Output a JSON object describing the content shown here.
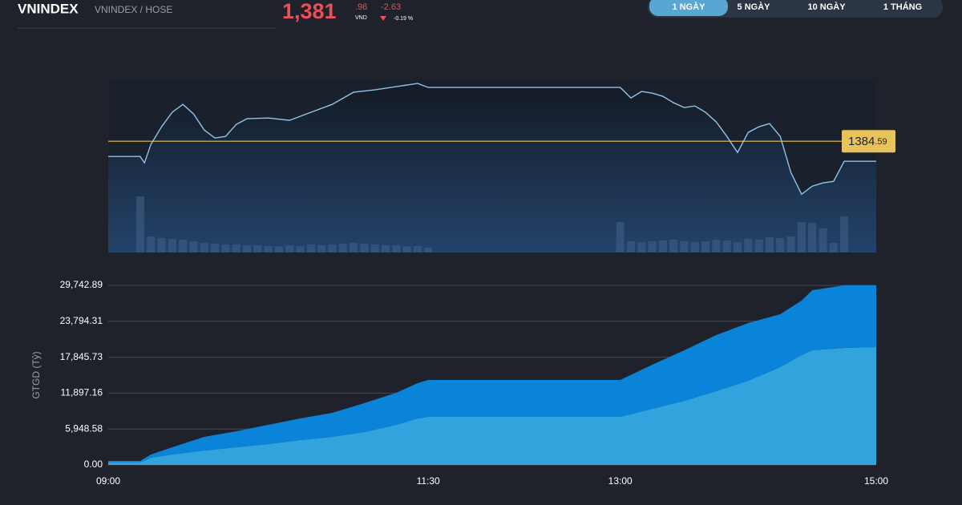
{
  "header": {
    "symbol": "VNINDEX",
    "exchange": "VNINDEX / HOSE",
    "price_int": "1,381",
    "price_dec": ".96",
    "currency": "VND",
    "change": "-2.63",
    "change_pct": "-0.19 %"
  },
  "tabs": [
    "1 NGÀY",
    "5 NGÀY",
    "10 NGÀY",
    "1 THÁNG"
  ],
  "chart_data": [
    {
      "type": "line",
      "x": [
        "09:00",
        "09:15",
        "09:17",
        "09:20",
        "09:25",
        "09:30",
        "09:35",
        "09:40",
        "09:45",
        "09:50",
        "09:55",
        "10:00",
        "10:05",
        "10:15",
        "10:25",
        "10:35",
        "10:45",
        "10:55",
        "11:05",
        "11:15",
        "11:25",
        "11:30",
        "13:00",
        "13:05",
        "13:10",
        "13:15",
        "13:20",
        "13:25",
        "13:30",
        "13:35",
        "13:40",
        "13:45",
        "13:50",
        "13:55",
        "14:00",
        "14:05",
        "14:10",
        "14:15",
        "14:20",
        "14:25",
        "14:27",
        "14:30",
        "14:35",
        "14:40",
        "14:45",
        "15:00"
      ],
      "series": [
        {
          "color": "#8fc3e8",
          "values": [
            1382.59,
            1382.59,
            1381.75,
            1384.17,
            1386.48,
            1388.38,
            1389.43,
            1388.17,
            1386.06,
            1385.01,
            1385.22,
            1386.8,
            1387.54,
            1387.64,
            1387.33,
            1388.38,
            1389.43,
            1391.01,
            1391.33,
            1391.75,
            1392.17,
            1391.64,
            1391.64,
            1390.27,
            1391.12,
            1390.9,
            1390.48,
            1389.64,
            1389.01,
            1389.22,
            1388.38,
            1387.12,
            1385.22,
            1383.12,
            1385.75,
            1386.48,
            1386.9,
            1385.22,
            1380.48,
            1377.64,
            1378.06,
            1378.7,
            1379.12,
            1379.33,
            1381.96,
            1381.96
          ]
        }
      ],
      "xlim": [
        "09:00",
        "15:00"
      ],
      "ylim": [
        1370,
        1392.6
      ],
      "reference_line": {
        "value": 1384.59,
        "label": "1384.59",
        "color": "#e8c25a"
      },
      "volume": {
        "x": [
          "09:15",
          "09:20",
          "09:25",
          "09:30",
          "09:35",
          "09:40",
          "09:45",
          "09:50",
          "09:55",
          "10:00",
          "10:05",
          "10:10",
          "10:15",
          "10:20",
          "10:25",
          "10:30",
          "10:35",
          "10:40",
          "10:45",
          "10:50",
          "10:55",
          "11:00",
          "11:05",
          "11:10",
          "11:15",
          "11:20",
          "11:25",
          "11:30",
          "13:00",
          "13:05",
          "13:10",
          "13:15",
          "13:20",
          "13:25",
          "13:30",
          "13:35",
          "13:40",
          "13:45",
          "13:50",
          "13:55",
          "14:00",
          "14:05",
          "14:10",
          "14:15",
          "14:20",
          "14:25",
          "14:30",
          "14:35",
          "14:40",
          "14:45"
        ],
        "values": [
          70,
          20,
          18,
          17,
          16,
          14,
          12,
          11,
          10,
          10,
          9,
          9,
          8,
          8,
          9,
          8,
          10,
          9,
          10,
          11,
          12,
          11,
          10,
          9,
          9,
          8,
          8,
          6,
          38,
          14,
          13,
          14,
          15,
          16,
          14,
          13,
          14,
          16,
          15,
          13,
          17,
          16,
          19,
          18,
          20,
          38,
          37,
          30,
          12,
          45
        ],
        "ylim": [
          0,
          100
        ],
        "color": "#3d5f85"
      }
    },
    {
      "type": "stacked_area",
      "ylabel": "GTGD (Tỷ)",
      "x": [
        "09:00",
        "09:15",
        "09:20",
        "09:30",
        "09:45",
        "10:00",
        "10:15",
        "10:30",
        "10:45",
        "11:00",
        "11:15",
        "11:25",
        "11:30",
        "13:00",
        "13:15",
        "13:30",
        "13:45",
        "14:00",
        "14:15",
        "14:25",
        "14:30",
        "14:45",
        "15:00"
      ],
      "series": [
        {
          "color": "#33a3de",
          "values": [
            398,
            398,
            1195,
            1726,
            2390,
            2921,
            3452,
            4117,
            4648,
            5445,
            6640,
            7702,
            7968,
            7968,
            9296,
            10624,
            12218,
            13944,
            16201,
            18193,
            18990,
            19388,
            19521
          ]
        },
        {
          "color": "#0a84d8",
          "values": [
            266,
            266,
            531,
            1195,
            2258,
            2657,
            3188,
            3585,
            3984,
            4781,
            5312,
            5843,
            6109,
            6109,
            7304,
            8366,
            9296,
            9562,
            8765,
            9031,
            9960,
            10355,
            10222
          ]
        }
      ],
      "xlim": [
        "09:00",
        "15:00"
      ],
      "xticks": [
        "09:00",
        "11:30",
        "13:00",
        "15:00"
      ],
      "ylim": [
        0,
        29742.89
      ],
      "yticks": [
        {
          "value": 0,
          "label": "0.00"
        },
        {
          "value": 5948.58,
          "label": "5,948.58"
        },
        {
          "value": 11897.16,
          "label": "11,897.16"
        },
        {
          "value": 17845.73,
          "label": "17,845.73"
        },
        {
          "value": 23794.31,
          "label": "23,794.31"
        },
        {
          "value": 29742.89,
          "label": "29,742.89"
        }
      ],
      "grid": true
    }
  ]
}
